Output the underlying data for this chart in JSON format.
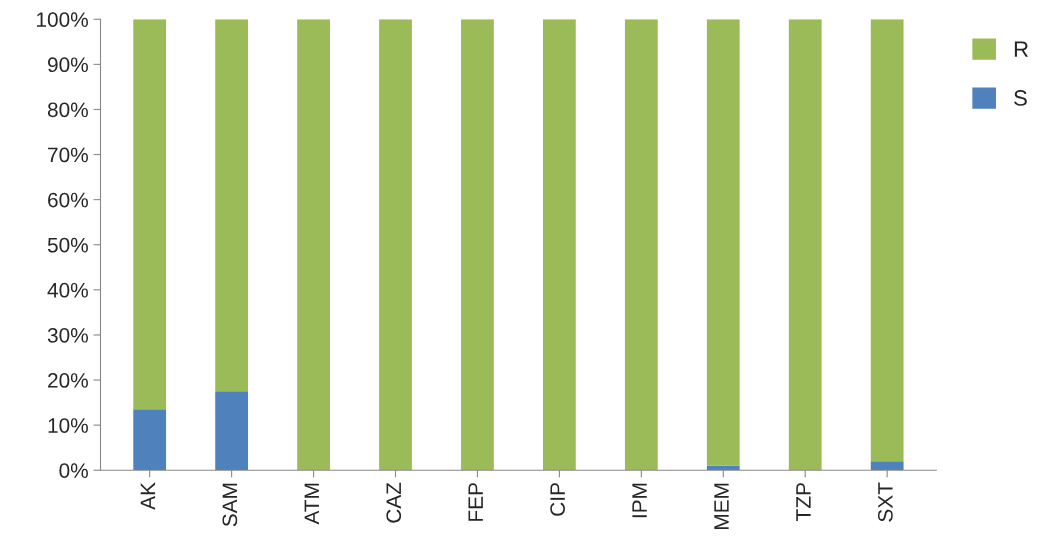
{
  "chart_data": {
    "type": "bar",
    "stacked": true,
    "categories": [
      "AK",
      "SAM",
      "ATM",
      "CAZ",
      "FEP",
      "CIP",
      "IPM",
      "MEM",
      "TZP",
      "SXT"
    ],
    "series": [
      {
        "name": "S",
        "color": "#4f81bd",
        "values": [
          13.5,
          17.5,
          0,
          0,
          0,
          0,
          0,
          1,
          0,
          2
        ]
      },
      {
        "name": "R",
        "color": "#9bbb59",
        "values": [
          86.5,
          82.5,
          100,
          100,
          100,
          100,
          100,
          99,
          100,
          98
        ]
      }
    ],
    "ylim": [
      0,
      100
    ],
    "yticks": [
      {
        "value": 0,
        "label": "0%"
      },
      {
        "value": 10,
        "label": "10%"
      },
      {
        "value": 20,
        "label": "20%"
      },
      {
        "value": 30,
        "label": "30%"
      },
      {
        "value": 40,
        "label": "40%"
      },
      {
        "value": 50,
        "label": "50%"
      },
      {
        "value": 60,
        "label": "60%"
      },
      {
        "value": 70,
        "label": "70%"
      },
      {
        "value": 80,
        "label": "80%"
      },
      {
        "value": 90,
        "label": "90%"
      },
      {
        "value": 100,
        "label": "100%"
      }
    ],
    "grid": false,
    "legend": "top right"
  }
}
